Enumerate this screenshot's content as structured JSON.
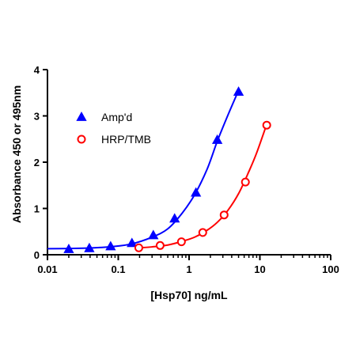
{
  "chart_data": {
    "type": "scatter",
    "title": "",
    "xlabel": "[Hsp70] ng/mL",
    "ylabel": "Absorbance 450 or 495nm",
    "x_scale": "log",
    "xlim": [
      0.01,
      100
    ],
    "ylim": [
      0,
      4
    ],
    "x_ticks": [
      0.01,
      0.1,
      1,
      10,
      100
    ],
    "x_tick_labels": [
      "0.01",
      "0.1",
      "1",
      "10",
      "100"
    ],
    "y_ticks": [
      0,
      1,
      2,
      3,
      4
    ],
    "y_tick_labels": [
      "0",
      "1",
      "2",
      "3",
      "4"
    ],
    "grid": false,
    "legend_position": "top-left",
    "series": [
      {
        "name": "Amp'd",
        "color": "#0000ff",
        "marker": "filled-triangle",
        "x": [
          0.02,
          0.039,
          0.078,
          0.156,
          0.3125,
          0.625,
          1.25,
          2.5,
          5
        ],
        "y": [
          0.12,
          0.14,
          0.18,
          0.25,
          0.42,
          0.78,
          1.34,
          2.48,
          3.52
        ],
        "fit_curve": [
          [
            0.01,
            0.13
          ],
          [
            0.02,
            0.135
          ],
          [
            0.04,
            0.145
          ],
          [
            0.08,
            0.175
          ],
          [
            0.15,
            0.23
          ],
          [
            0.3,
            0.38
          ],
          [
            0.5,
            0.56
          ],
          [
            0.8,
            0.9
          ],
          [
            1.2,
            1.3
          ],
          [
            1.8,
            1.85
          ],
          [
            2.5,
            2.45
          ],
          [
            3.5,
            3.0
          ],
          [
            5,
            3.55
          ]
        ]
      },
      {
        "name": "HRP/TMB",
        "color": "#ff0000",
        "marker": "open-circle",
        "x": [
          0.195,
          0.39,
          0.78,
          1.56,
          3.125,
          6.25,
          12.5
        ],
        "y": [
          0.15,
          0.2,
          0.28,
          0.48,
          0.86,
          1.57,
          2.8
        ],
        "fit_curve": [
          [
            0.195,
            0.15
          ],
          [
            0.3,
            0.17
          ],
          [
            0.5,
            0.21
          ],
          [
            0.8,
            0.29
          ],
          [
            1.2,
            0.38
          ],
          [
            1.8,
            0.53
          ],
          [
            2.5,
            0.7
          ],
          [
            3.5,
            0.95
          ],
          [
            5,
            1.32
          ],
          [
            7,
            1.8
          ],
          [
            9,
            2.2
          ],
          [
            12.5,
            2.82
          ]
        ]
      }
    ]
  }
}
